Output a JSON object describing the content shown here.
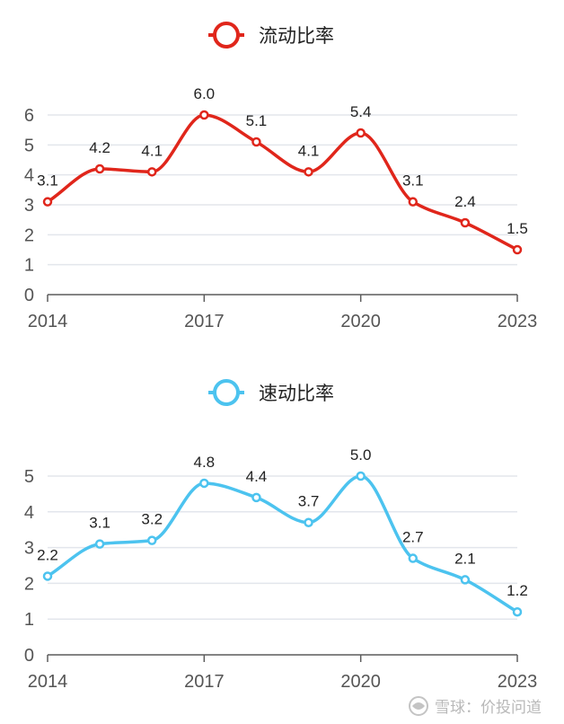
{
  "chart_data": [
    {
      "type": "line",
      "x": [
        2014,
        2015,
        2016,
        2017,
        2018,
        2019,
        2020,
        2021,
        2022,
        2023
      ],
      "x_tick_labels": [
        "2014",
        "2017",
        "2020",
        "2023"
      ],
      "y_tick_labels": [
        "0",
        "1",
        "2",
        "3",
        "4",
        "5",
        "6"
      ],
      "ylim": [
        0,
        6
      ],
      "grid": true,
      "legend_position": "top-center",
      "series": [
        {
          "name": "流动比率",
          "color": "#e0261b",
          "values": [
            3.1,
            4.2,
            4.1,
            6.0,
            5.1,
            4.1,
            5.4,
            3.1,
            2.4,
            1.5
          ],
          "labels": [
            "3.1",
            "4.2",
            "4.1",
            "6.0",
            "5.1",
            "4.1",
            "5.4",
            "3.1",
            "2.4",
            "1.5"
          ]
        }
      ]
    },
    {
      "type": "line",
      "x": [
        2014,
        2015,
        2016,
        2017,
        2018,
        2019,
        2020,
        2021,
        2022,
        2023
      ],
      "x_tick_labels": [
        "2014",
        "2017",
        "2020",
        "2023"
      ],
      "y_tick_labels": [
        "0",
        "1",
        "2",
        "3",
        "4",
        "5"
      ],
      "ylim": [
        0,
        5
      ],
      "grid": true,
      "legend_position": "top-center",
      "series": [
        {
          "name": "速动比率",
          "color": "#4cc3ef",
          "values": [
            2.2,
            3.1,
            3.2,
            4.8,
            4.4,
            3.7,
            5.0,
            2.7,
            2.1,
            1.2
          ],
          "labels": [
            "2.2",
            "3.1",
            "3.2",
            "4.8",
            "4.4",
            "3.7",
            "5.0",
            "2.7",
            "2.1",
            "1.2"
          ]
        }
      ]
    }
  ],
  "watermark": {
    "text": "雪球：价投问道",
    "icon": "snowball-logo-icon"
  }
}
